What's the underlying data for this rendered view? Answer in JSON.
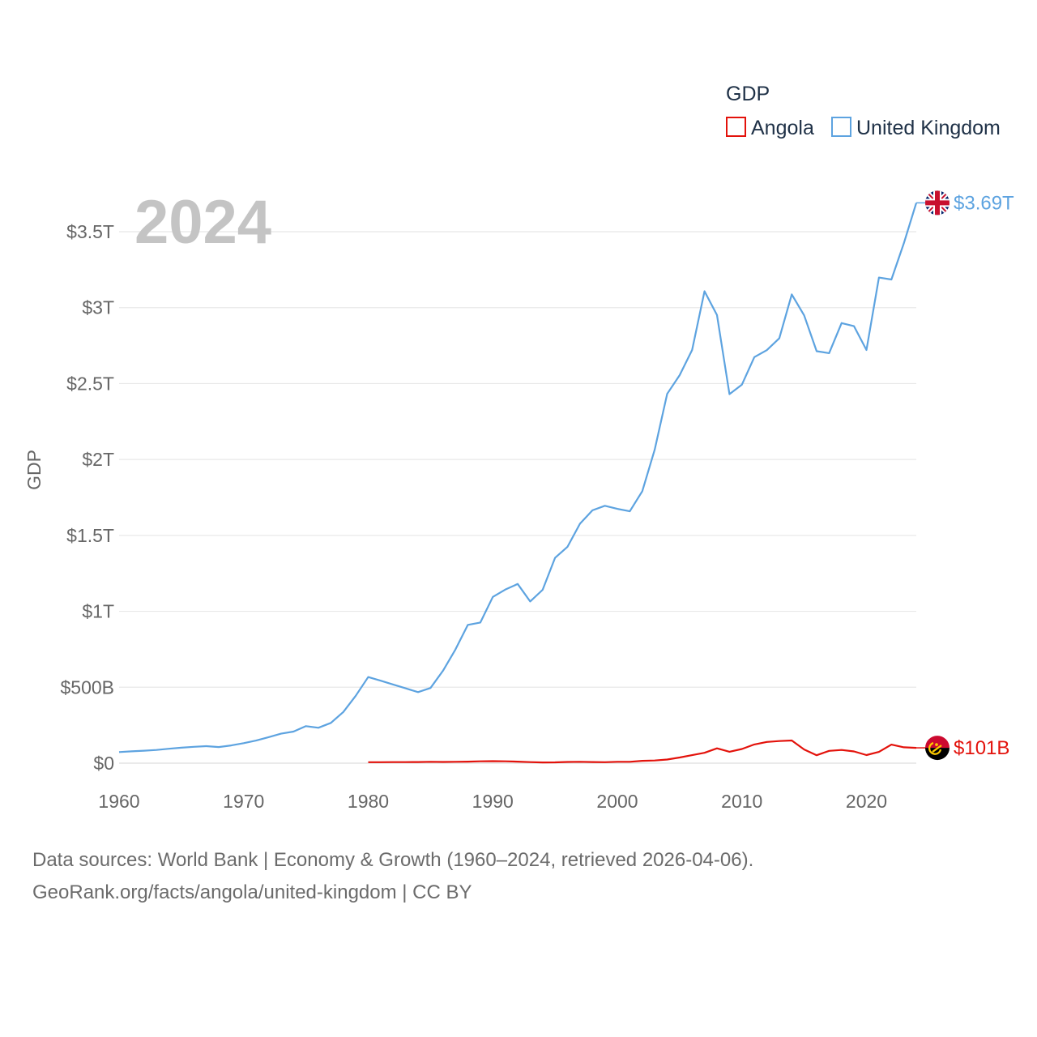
{
  "chart_data": {
    "type": "line",
    "title": "GDP",
    "year_label": "2024",
    "ylabel": "GDP",
    "xlabel": "",
    "xlim": [
      1960,
      2024
    ],
    "ylim": [
      0,
      3.7
    ],
    "x_ticks": [
      1960,
      1970,
      1980,
      1990,
      2000,
      2010,
      2020
    ],
    "y_ticks": [
      {
        "value": 0,
        "label": "$0"
      },
      {
        "value": 0.5,
        "label": "$500B"
      },
      {
        "value": 1.0,
        "label": "$1T"
      },
      {
        "value": 1.5,
        "label": "$1.5T"
      },
      {
        "value": 2.0,
        "label": "$2T"
      },
      {
        "value": 2.5,
        "label": "$2.5T"
      },
      {
        "value": 3.0,
        "label": "$3T"
      },
      {
        "value": 3.5,
        "label": "$3.5T"
      }
    ],
    "units": "trillions of US$",
    "legend": {
      "title": "GDP",
      "position": "top-right"
    },
    "series": [
      {
        "name": "Angola",
        "color": "#e3120b",
        "end_label": "$101B",
        "flag": "angola-flag",
        "x": [
          1980,
          1981,
          1982,
          1983,
          1984,
          1985,
          1986,
          1987,
          1988,
          1989,
          1990,
          1991,
          1992,
          1993,
          1994,
          1995,
          1996,
          1997,
          1998,
          1999,
          2000,
          2001,
          2002,
          2003,
          2004,
          2005,
          2006,
          2007,
          2008,
          2009,
          2010,
          2011,
          2012,
          2013,
          2014,
          2015,
          2016,
          2017,
          2018,
          2019,
          2020,
          2021,
          2022,
          2023,
          2024
        ],
        "values": [
          0.0062,
          0.0065,
          0.0069,
          0.0071,
          0.0077,
          0.009,
          0.008,
          0.0093,
          0.0104,
          0.0124,
          0.0132,
          0.0124,
          0.0104,
          0.0069,
          0.005,
          0.0052,
          0.008,
          0.009,
          0.0077,
          0.0065,
          0.0092,
          0.0089,
          0.0155,
          0.0178,
          0.0238,
          0.0371,
          0.0528,
          0.0683,
          0.0977,
          0.0753,
          0.0932,
          0.1233,
          0.1399,
          0.1458,
          0.1495,
          0.0901,
          0.0523,
          0.0809,
          0.0867,
          0.0776,
          0.0532,
          0.0743,
          0.1224,
          0.1047,
          0.101
        ]
      },
      {
        "name": "United Kingdom",
        "color": "#5da3e0",
        "end_label": "$3.69T",
        "flag": "uk-flag",
        "x": [
          1960,
          1961,
          1962,
          1963,
          1964,
          1965,
          1966,
          1967,
          1968,
          1969,
          1970,
          1971,
          1972,
          1973,
          1974,
          1975,
          1976,
          1977,
          1978,
          1979,
          1980,
          1981,
          1982,
          1983,
          1984,
          1985,
          1986,
          1987,
          1988,
          1989,
          1990,
          1991,
          1992,
          1993,
          1994,
          1995,
          1996,
          1997,
          1998,
          1999,
          2000,
          2001,
          2002,
          2003,
          2004,
          2005,
          2006,
          2007,
          2008,
          2009,
          2010,
          2011,
          2012,
          2013,
          2014,
          2015,
          2016,
          2017,
          2018,
          2019,
          2020,
          2021,
          2022,
          2023,
          2024
        ],
        "values": [
          0.073,
          0.078,
          0.082,
          0.087,
          0.095,
          0.102,
          0.108,
          0.112,
          0.106,
          0.117,
          0.132,
          0.149,
          0.171,
          0.194,
          0.208,
          0.244,
          0.233,
          0.265,
          0.337,
          0.444,
          0.567,
          0.543,
          0.518,
          0.493,
          0.468,
          0.495,
          0.609,
          0.748,
          0.911,
          0.926,
          1.095,
          1.143,
          1.18,
          1.065,
          1.142,
          1.352,
          1.425,
          1.577,
          1.665,
          1.695,
          1.675,
          1.659,
          1.791,
          2.064,
          2.432,
          2.555,
          2.721,
          3.108,
          2.951,
          2.43,
          2.493,
          2.674,
          2.72,
          2.798,
          3.087,
          2.949,
          2.713,
          2.7,
          2.898,
          2.878,
          2.721,
          3.198,
          3.185,
          3.423,
          3.69
        ]
      }
    ]
  },
  "footer": {
    "line1": "Data sources: World Bank | Economy & Growth (1960–2024, retrieved 2026-04-06).",
    "line2": "GeoRank.org/facts/angola/united-kingdom | CC BY"
  }
}
